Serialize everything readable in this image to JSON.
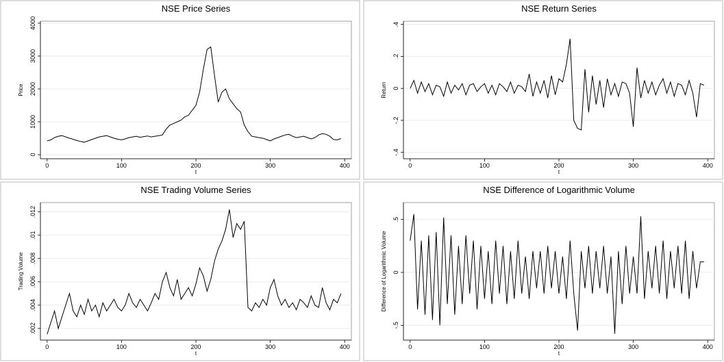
{
  "chart_data": [
    {
      "type": "line",
      "title": "NSE Price Series",
      "x_label": "t",
      "y_label": "Price",
      "color": "#000000",
      "grid": true,
      "x": [
        0,
        5,
        10,
        15,
        20,
        25,
        30,
        35,
        40,
        45,
        50,
        55,
        60,
        65,
        70,
        75,
        80,
        85,
        90,
        95,
        100,
        105,
        110,
        115,
        120,
        125,
        130,
        135,
        140,
        145,
        150,
        155,
        160,
        165,
        170,
        175,
        180,
        185,
        190,
        195,
        200,
        205,
        210,
        215,
        220,
        225,
        230,
        235,
        240,
        245,
        250,
        255,
        260,
        265,
        270,
        275,
        280,
        285,
        290,
        295,
        300,
        305,
        310,
        315,
        320,
        325,
        330,
        335,
        340,
        345,
        350,
        355,
        360,
        365,
        370,
        375,
        380,
        385,
        390,
        395
      ],
      "values": [
        420,
        450,
        520,
        560,
        580,
        540,
        500,
        470,
        430,
        400,
        380,
        420,
        460,
        500,
        540,
        560,
        580,
        540,
        500,
        470,
        450,
        480,
        520,
        540,
        560,
        530,
        550,
        570,
        540,
        560,
        580,
        600,
        780,
        900,
        950,
        1000,
        1050,
        1150,
        1200,
        1350,
        1500,
        1900,
        2600,
        3200,
        3280,
        2400,
        1600,
        1900,
        2000,
        1700,
        1550,
        1400,
        1300,
        900,
        700,
        560,
        540,
        520,
        500,
        460,
        420,
        480,
        520,
        560,
        600,
        620,
        560,
        520,
        540,
        560,
        520,
        480,
        520,
        600,
        640,
        620,
        560,
        460,
        450,
        490
      ],
      "xlim": [
        -9,
        409
      ],
      "ylim": [
        -124,
        4060
      ],
      "xticks": [
        0,
        100,
        200,
        300,
        400
      ],
      "yticks": [
        0,
        1000,
        2000,
        3000,
        4000
      ]
    },
    {
      "type": "line",
      "title": "NSE Return Series",
      "x_label": "t",
      "y_label": "Return",
      "color": "#000000",
      "grid": true,
      "x": [
        0,
        5,
        10,
        15,
        20,
        25,
        30,
        35,
        40,
        45,
        50,
        55,
        60,
        65,
        70,
        75,
        80,
        85,
        90,
        95,
        100,
        105,
        110,
        115,
        120,
        125,
        130,
        135,
        140,
        145,
        150,
        155,
        160,
        165,
        170,
        175,
        180,
        185,
        190,
        195,
        200,
        205,
        210,
        215,
        220,
        225,
        230,
        235,
        240,
        245,
        250,
        255,
        260,
        265,
        270,
        275,
        280,
        285,
        290,
        295,
        300,
        305,
        310,
        315,
        320,
        325,
        330,
        335,
        340,
        345,
        350,
        355,
        360,
        365,
        370,
        375,
        380,
        385,
        390,
        395
      ],
      "values": [
        0.0,
        0.05,
        -0.03,
        0.04,
        -0.02,
        0.03,
        -0.04,
        0.02,
        0.01,
        -0.05,
        0.04,
        -0.03,
        0.02,
        -0.01,
        0.03,
        -0.04,
        0.02,
        0.03,
        -0.02,
        0.01,
        0.03,
        -0.03,
        0.02,
        -0.04,
        0.03,
        0.01,
        -0.02,
        0.04,
        -0.03,
        0.02,
        0.01,
        -0.02,
        0.09,
        -0.05,
        0.04,
        -0.03,
        0.05,
        -0.06,
        0.08,
        -0.04,
        0.06,
        0.04,
        0.15,
        0.31,
        -0.2,
        -0.25,
        -0.26,
        0.12,
        -0.15,
        0.08,
        -0.1,
        0.05,
        -0.12,
        0.06,
        -0.04,
        0.03,
        -0.05,
        0.04,
        0.03,
        -0.03,
        -0.24,
        0.13,
        -0.06,
        0.05,
        -0.03,
        0.04,
        -0.04,
        0.02,
        0.06,
        -0.03,
        0.04,
        -0.05,
        0.03,
        0.02,
        -0.04,
        0.05,
        -0.03,
        -0.18,
        0.03,
        0.02
      ],
      "xlim": [
        -9,
        409
      ],
      "ylim": [
        -0.44,
        0.42
      ],
      "xticks": [
        0,
        100,
        200,
        300,
        400
      ],
      "yticks": [
        {
          "value": -0.4,
          "label": "-.4"
        },
        {
          "value": -0.2,
          "label": "-.2"
        },
        0,
        {
          "value": 0.2,
          "label": ".2"
        },
        {
          "value": 0.4,
          "label": ".4"
        }
      ]
    },
    {
      "type": "line",
      "title": "NSE Trading Volume Series",
      "x_label": "t",
      "y_label": "Trading Volume",
      "color": "#000000",
      "grid": true,
      "x": [
        0,
        5,
        10,
        15,
        20,
        25,
        30,
        35,
        40,
        45,
        50,
        55,
        60,
        65,
        70,
        75,
        80,
        85,
        90,
        95,
        100,
        105,
        110,
        115,
        120,
        125,
        130,
        135,
        140,
        145,
        150,
        155,
        160,
        165,
        170,
        175,
        180,
        185,
        190,
        195,
        200,
        205,
        210,
        215,
        220,
        225,
        230,
        235,
        240,
        245,
        250,
        255,
        260,
        265,
        270,
        275,
        280,
        285,
        290,
        295,
        300,
        305,
        310,
        315,
        320,
        325,
        330,
        335,
        340,
        345,
        350,
        355,
        360,
        365,
        370,
        375,
        380,
        385,
        390,
        395
      ],
      "values": [
        0.0015,
        0.0025,
        0.0035,
        0.002,
        0.003,
        0.004,
        0.005,
        0.0035,
        0.003,
        0.004,
        0.0032,
        0.0045,
        0.0035,
        0.004,
        0.003,
        0.0042,
        0.0035,
        0.004,
        0.0045,
        0.0038,
        0.0035,
        0.004,
        0.005,
        0.0042,
        0.0038,
        0.0045,
        0.004,
        0.0035,
        0.0042,
        0.005,
        0.0045,
        0.006,
        0.0068,
        0.0055,
        0.0048,
        0.0062,
        0.0045,
        0.005,
        0.0055,
        0.0048,
        0.0058,
        0.0072,
        0.0065,
        0.0052,
        0.0062,
        0.0078,
        0.0088,
        0.0095,
        0.0105,
        0.0122,
        0.0098,
        0.011,
        0.0105,
        0.0112,
        0.0038,
        0.0035,
        0.0042,
        0.0038,
        0.0045,
        0.004,
        0.0055,
        0.0062,
        0.0048,
        0.004,
        0.0045,
        0.0038,
        0.0042,
        0.0036,
        0.0045,
        0.0042,
        0.0038,
        0.0048,
        0.004,
        0.0038,
        0.0055,
        0.0042,
        0.0036,
        0.0045,
        0.0042,
        0.005
      ],
      "xlim": [
        -9,
        409
      ],
      "ylim": [
        0.001,
        0.0128
      ],
      "xticks": [
        0,
        100,
        200,
        300,
        400
      ],
      "yticks": [
        {
          "value": 0.002,
          "label": ".002"
        },
        {
          "value": 0.004,
          "label": ".004"
        },
        {
          "value": 0.006,
          "label": ".006"
        },
        {
          "value": 0.008,
          "label": ".008"
        },
        {
          "value": 0.01,
          "label": ".01"
        },
        {
          "value": 0.012,
          "label": ".012"
        }
      ]
    },
    {
      "type": "line",
      "title": "NSE Difference of Logarithmic Volume",
      "x_label": "t",
      "y_label": "Difference of Logarithmic Volume",
      "color": "#000000",
      "grid": true,
      "x": [
        0,
        5,
        10,
        15,
        20,
        25,
        30,
        35,
        40,
        45,
        50,
        55,
        60,
        65,
        70,
        75,
        80,
        85,
        90,
        95,
        100,
        105,
        110,
        115,
        120,
        125,
        130,
        135,
        140,
        145,
        150,
        155,
        160,
        165,
        170,
        175,
        180,
        185,
        190,
        195,
        200,
        205,
        210,
        215,
        220,
        225,
        230,
        235,
        240,
        245,
        250,
        255,
        260,
        265,
        270,
        275,
        280,
        285,
        290,
        295,
        300,
        305,
        310,
        315,
        320,
        325,
        330,
        335,
        340,
        345,
        350,
        355,
        360,
        365,
        370,
        375,
        380,
        385,
        390,
        395
      ],
      "values": [
        0.3,
        0.55,
        -0.35,
        0.3,
        -0.4,
        0.35,
        -0.45,
        0.38,
        -0.5,
        0.52,
        -0.3,
        0.35,
        -0.4,
        0.25,
        -0.3,
        0.35,
        -0.2,
        0.3,
        -0.35,
        0.25,
        -0.25,
        0.2,
        -0.3,
        0.3,
        -0.2,
        0.25,
        -0.3,
        0.2,
        -0.25,
        0.3,
        -0.2,
        0.15,
        -0.25,
        0.2,
        -0.15,
        0.2,
        -0.2,
        0.25,
        -0.15,
        0.2,
        -0.2,
        0.15,
        -0.25,
        0.3,
        -0.2,
        -0.55,
        0.2,
        -0.15,
        0.25,
        -0.2,
        0.2,
        -0.15,
        0.25,
        -0.2,
        0.15,
        -0.58,
        0.2,
        -0.3,
        0.25,
        -0.2,
        0.15,
        -0.2,
        0.53,
        -0.25,
        0.2,
        -0.15,
        0.25,
        -0.2,
        0.3,
        -0.25,
        0.2,
        -0.15,
        0.25,
        -0.2,
        0.3,
        -0.25,
        0.2,
        -0.15,
        0.1,
        0.1
      ],
      "xlim": [
        -9,
        409
      ],
      "ylim": [
        -0.64,
        0.66
      ],
      "xticks": [
        0,
        100,
        200,
        300,
        400
      ],
      "yticks": [
        {
          "value": -0.5,
          "label": "-.5"
        },
        0,
        {
          "value": 0.5,
          "label": ".5"
        }
      ]
    }
  ]
}
